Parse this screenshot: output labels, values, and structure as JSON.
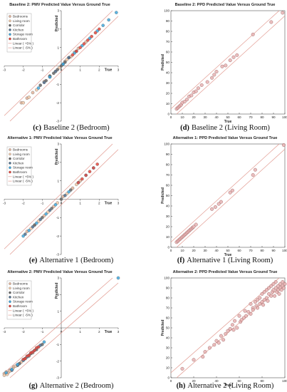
{
  "chart_data": [
    {
      "id": "a",
      "type": "scatter",
      "title": "Baseline 2: PMV Predicted Value Versus Ground True",
      "caption_label": "(c)",
      "caption_text": "Baseline 2 (Bedroom)",
      "xlabel": "True",
      "ylabel": "Predicted",
      "xlim": [
        -3,
        3
      ],
      "ylim": [
        -3,
        3
      ],
      "xticks": [
        "-3",
        "-2",
        "-1",
        "0",
        "1",
        "2",
        "3"
      ],
      "yticks": [
        "-3",
        "-2",
        "-1",
        "1",
        "2",
        "3"
      ],
      "axes_style": "centered",
      "legend": {
        "position": "top-left",
        "entries": [
          {
            "label": "Bedrooms",
            "kind": "marker",
            "color": "#e4b49a"
          },
          {
            "label": "Living room",
            "kind": "marker",
            "color": "#f2c9a8"
          },
          {
            "label": "Corridor",
            "kind": "marker",
            "color": "#666666"
          },
          {
            "label": "Kitchen",
            "kind": "marker",
            "color": "#4f6f8f"
          },
          {
            "label": "Storage room",
            "kind": "marker",
            "color": "#3fa8de"
          },
          {
            "label": "Bathroom",
            "kind": "marker",
            "color": "#e8443a"
          },
          {
            "label": "Linear ( +5% )",
            "kind": "line",
            "color": "#e29a90"
          },
          {
            "label": "Linear ( -5% )",
            "kind": "line",
            "color": "#e29a90"
          }
        ]
      },
      "series": [
        {
          "name": "Bedrooms",
          "color": "#e4b49a",
          "x": [
            -2.1,
            -1.8,
            -1.5,
            -0.9,
            -0.3,
            0.2,
            0.5,
            0.9,
            1.3
          ],
          "y": [
            -2.0,
            -1.75,
            -1.45,
            -0.85,
            -0.3,
            0.25,
            0.5,
            0.95,
            1.3
          ]
        },
        {
          "name": "Living room",
          "color": "#f2c9a8",
          "x": [
            -2.0,
            -1.7,
            -1.3,
            -0.6,
            -0.1,
            0.3,
            0.7
          ],
          "y": [
            -2.0,
            -1.7,
            -1.3,
            -0.55,
            -0.1,
            0.35,
            0.75
          ]
        },
        {
          "name": "Corridor",
          "color": "#666666",
          "x": [
            -1.1,
            -0.8,
            -0.6,
            -0.4,
            -0.2,
            0.0,
            0.2,
            0.4
          ],
          "y": [
            -1.05,
            -0.8,
            -0.55,
            -0.4,
            -0.2,
            0.0,
            0.2,
            0.45
          ]
        },
        {
          "name": "Kitchen",
          "color": "#4f6f8f",
          "x": [
            -0.9,
            -0.6,
            -0.3,
            0.1,
            0.4,
            0.8
          ],
          "y": [
            -0.9,
            -0.6,
            -0.3,
            0.1,
            0.45,
            0.8
          ]
        },
        {
          "name": "Storage room",
          "color": "#3fa8de",
          "x": [
            -1.2,
            -0.6,
            0.1,
            0.7,
            1.1,
            1.5,
            1.9,
            2.2,
            2.5,
            2.9
          ],
          "y": [
            -1.2,
            -0.6,
            0.1,
            0.7,
            1.1,
            1.5,
            1.9,
            2.2,
            2.5,
            2.9
          ]
        },
        {
          "name": "Bathroom",
          "color": "#e8443a",
          "x": [
            0.6,
            0.8,
            1.0,
            1.2,
            1.4,
            1.6,
            1.8,
            2.0
          ],
          "y": [
            0.6,
            0.8,
            1.0,
            1.2,
            1.4,
            1.6,
            1.8,
            2.0
          ]
        }
      ]
    },
    {
      "id": "b",
      "type": "scatter",
      "title": "Baseline 2: PPD Predicted Value Versus Ground True",
      "caption_label": "(d)",
      "caption_text": "Baseline 2 (Living Room)",
      "xlabel": "True",
      "ylabel": "Predicted",
      "xlim": [
        0,
        100
      ],
      "ylim": [
        0,
        100
      ],
      "xticks": [
        "0",
        "10",
        "20",
        "30",
        "40",
        "50",
        "60",
        "70",
        "80",
        "90",
        "100"
      ],
      "yticks": [
        "0",
        "10",
        "20",
        "30",
        "40",
        "50",
        "60",
        "70",
        "80",
        "90",
        "100"
      ],
      "axes_style": "box",
      "series": [
        {
          "name": "",
          "color": "#e6b3b3",
          "x": [
            5,
            6,
            7,
            8,
            9,
            10,
            12,
            14,
            16,
            18,
            20,
            22,
            24,
            27,
            32,
            36,
            38,
            40,
            45,
            48,
            52,
            55,
            58,
            72,
            88,
            98
          ],
          "y": [
            5,
            6,
            7,
            8,
            9,
            11,
            12,
            14,
            17,
            18,
            21,
            22,
            25,
            28,
            31,
            35,
            38,
            41,
            46,
            47,
            52,
            55,
            57,
            77,
            89,
            98
          ]
        }
      ]
    },
    {
      "id": "c",
      "type": "scatter",
      "title": "Alternative 1: PMV Predicted Value Versus Ground True",
      "caption_label": "(e)",
      "caption_text": "Alternative 1 (Bedroom)",
      "xlabel": "True",
      "ylabel": "Predicted",
      "xlim": [
        -3,
        3
      ],
      "ylim": [
        -3,
        3
      ],
      "xticks": [
        "-3",
        "-2",
        "-1",
        "0",
        "1",
        "2",
        "3"
      ],
      "yticks": [
        "-3",
        "-2",
        "-1",
        "1",
        "2",
        "3"
      ],
      "axes_style": "centered",
      "legend": {
        "position": "top-left",
        "entries": [
          {
            "label": "Bedrooms",
            "kind": "marker",
            "color": "#e4b49a"
          },
          {
            "label": "Living room",
            "kind": "marker",
            "color": "#f2c9a8"
          },
          {
            "label": "Corridor",
            "kind": "marker",
            "color": "#666666"
          },
          {
            "label": "Kitchen",
            "kind": "marker",
            "color": "#4f6f8f"
          },
          {
            "label": "Storage room",
            "kind": "marker",
            "color": "#3fa8de"
          },
          {
            "label": "Bathroom",
            "kind": "marker",
            "color": "#e8443a"
          },
          {
            "label": "Linear ( +5% )",
            "kind": "line",
            "color": "#e29a90"
          },
          {
            "label": "Linear ( -5% )",
            "kind": "line",
            "color": "#e29a90"
          }
        ]
      },
      "series": [
        {
          "name": "Bedrooms",
          "color": "#e4b49a",
          "x": [
            -1.8,
            -1.4,
            -0.9,
            -0.4,
            0.1,
            0.6,
            1.0
          ],
          "y": [
            -1.75,
            -1.4,
            -0.9,
            -0.4,
            0.15,
            0.6,
            1.0
          ]
        },
        {
          "name": "Living room",
          "color": "#f2c9a8",
          "x": [
            -1.6,
            -1.2,
            -0.7,
            -0.2,
            0.3,
            0.8
          ],
          "y": [
            -1.6,
            -1.2,
            -0.7,
            -0.2,
            0.3,
            0.8
          ]
        },
        {
          "name": "Corridor",
          "color": "#666666",
          "x": [
            -1.4,
            -1.0,
            -0.5,
            0.0,
            0.5
          ],
          "y": [
            -1.4,
            -1.0,
            -0.5,
            0.0,
            0.5
          ]
        },
        {
          "name": "Kitchen",
          "color": "#4f6f8f",
          "x": [
            -1.9,
            -1.5,
            -1.1,
            -0.6,
            0.2
          ],
          "y": [
            -1.9,
            -1.5,
            -1.1,
            -0.6,
            0.2
          ]
        },
        {
          "name": "Storage room",
          "color": "#3fa8de",
          "x": [
            -2.0,
            -1.7,
            -1.3,
            -0.8,
            -0.3,
            0.4,
            0.9,
            1.3,
            1.7
          ],
          "y": [
            -2.0,
            -1.7,
            -1.3,
            -0.8,
            -0.3,
            0.4,
            0.9,
            1.3,
            1.7
          ]
        },
        {
          "name": "Bathroom",
          "color": "#e8443a",
          "x": [
            0.9,
            1.1,
            1.3,
            1.5,
            1.7,
            1.9
          ],
          "y": [
            0.9,
            1.1,
            1.3,
            1.5,
            1.7,
            1.9
          ]
        }
      ]
    },
    {
      "id": "d",
      "type": "scatter",
      "title": "Alternative 1: PPD Predicted Value Versus Ground True",
      "caption_label": "(f)",
      "caption_text": "Alternative 1 (Living Room)",
      "xlabel": "True",
      "ylabel": "Predicted",
      "xlim": [
        0,
        100
      ],
      "ylim": [
        0,
        100
      ],
      "xticks": [
        "0",
        "10",
        "20",
        "30",
        "40",
        "50",
        "60",
        "70",
        "80",
        "90",
        "100"
      ],
      "yticks": [
        "0",
        "10",
        "20",
        "30",
        "40",
        "50",
        "60",
        "70",
        "80",
        "90",
        "100"
      ],
      "axes_style": "box",
      "series": [
        {
          "name": "",
          "color": "#e6b3b3",
          "x": [
            5,
            6,
            7,
            8,
            9,
            10,
            11,
            12,
            13,
            14,
            15,
            16,
            17,
            18,
            19,
            20,
            22,
            36,
            39,
            42,
            44,
            52,
            54,
            72,
            74,
            99
          ],
          "y": [
            5,
            6,
            7,
            8,
            9,
            10,
            11,
            12,
            13,
            14,
            15,
            16,
            17,
            18,
            19,
            20,
            22,
            37,
            39,
            42,
            44,
            53,
            55,
            70,
            75,
            99
          ]
        }
      ]
    },
    {
      "id": "e",
      "type": "scatter",
      "title": "Alternative 2: PMV Predicted Value Versus Ground True",
      "caption_label": "(g)",
      "caption_text": "Alternative 2 (Bedroom)",
      "xlabel": "True",
      "ylabel": "Predicted",
      "xlim": [
        -3,
        3
      ],
      "ylim": [
        -3,
        3
      ],
      "xticks": [
        "-3",
        "-2",
        "-1",
        "0",
        "1",
        "2",
        "3"
      ],
      "yticks": [
        "-3",
        "-2",
        "-1",
        "1",
        "2",
        "3"
      ],
      "axes_style": "centered",
      "legend": {
        "position": "top-left",
        "entries": [
          {
            "label": "Bedrooms",
            "kind": "marker",
            "color": "#e4b49a"
          },
          {
            "label": "Living room",
            "kind": "marker",
            "color": "#f2c9a8"
          },
          {
            "label": "Corridor",
            "kind": "marker",
            "color": "#666666"
          },
          {
            "label": "Kitchen",
            "kind": "marker",
            "color": "#4f6f8f"
          },
          {
            "label": "Storage room",
            "kind": "marker",
            "color": "#3fa8de"
          },
          {
            "label": "Bathroom",
            "kind": "marker",
            "color": "#e8443a"
          },
          {
            "label": "Linear ( +5% )",
            "kind": "line",
            "color": "#e29a90"
          },
          {
            "label": "Linear ( -5% )",
            "kind": "line",
            "color": "#e29a90"
          }
        ]
      },
      "series": [
        {
          "name": "Bedrooms",
          "color": "#e4b49a",
          "x": [
            -3.0,
            -2.9,
            -2.8,
            -2.7,
            -2.6,
            -2.5,
            -2.3,
            -2.1,
            -1.9,
            -1.7,
            -1.5
          ],
          "y": [
            -2.75,
            -2.65,
            -2.7,
            -2.55,
            -2.5,
            -2.35,
            -2.25,
            -2.05,
            -1.85,
            -1.7,
            -1.5
          ]
        },
        {
          "name": "Living room",
          "color": "#f2c9a8",
          "x": [
            -3.0,
            -2.85,
            -2.7,
            -2.55,
            -2.4,
            -2.2,
            -2.0,
            -1.8
          ],
          "y": [
            -2.85,
            -2.8,
            -2.6,
            -2.45,
            -2.3,
            -2.15,
            -1.95,
            -1.75
          ]
        },
        {
          "name": "Corridor",
          "color": "#666666",
          "x": [
            -2.2,
            -1.9,
            -1.6,
            -1.3,
            -1.0
          ],
          "y": [
            -2.15,
            -1.85,
            -1.55,
            -1.3,
            -1.0
          ]
        },
        {
          "name": "Kitchen",
          "color": "#4f6f8f",
          "x": [
            -2.6,
            -2.3,
            -2.0,
            -1.7,
            -1.4,
            -1.1
          ],
          "y": [
            -2.55,
            -2.25,
            -1.95,
            -1.65,
            -1.35,
            -1.05
          ]
        },
        {
          "name": "Storage room",
          "color": "#3fa8de",
          "x": [
            -2.9,
            -2.6,
            -2.3,
            -2.0,
            -1.8,
            -1.5,
            -1.2,
            -0.9,
            3.0
          ],
          "y": [
            -2.7,
            -2.5,
            -2.2,
            -1.95,
            -1.75,
            -1.45,
            -1.15,
            -0.85,
            3.0
          ]
        },
        {
          "name": "Bathroom",
          "color": "#e8443a",
          "x": [
            -2.0,
            -1.9,
            -1.8,
            -1.7,
            -1.6,
            -1.5,
            -1.4,
            -1.3,
            -1.2
          ],
          "y": [
            -1.9,
            -1.85,
            -1.7,
            -1.65,
            -1.5,
            -1.45,
            -1.35,
            -1.2,
            -1.15
          ]
        }
      ]
    },
    {
      "id": "f",
      "type": "scatter",
      "title": "Alternative 2: PPD Predicted Value Versus Ground True",
      "caption_label": "(h)",
      "caption_text": "Alternative 2 (Living Room)",
      "xlabel": "True",
      "ylabel": "Predicted",
      "xlim": [
        0,
        100
      ],
      "ylim": [
        0,
        100
      ],
      "xticks": [
        "0",
        "20",
        "40",
        "60",
        "80",
        "100"
      ],
      "yticks": [
        "0",
        "10",
        "20",
        "30",
        "40",
        "50",
        "60",
        "70",
        "80",
        "90",
        "100"
      ],
      "axes_style": "box",
      "series": [
        {
          "name": "",
          "color": "#e6b3b3",
          "x": [
            10,
            20,
            28,
            30,
            34,
            38,
            40,
            42,
            44,
            46,
            48,
            50,
            52,
            54,
            55,
            56,
            58,
            60,
            61,
            62,
            64,
            65,
            66,
            68,
            70,
            70,
            72,
            72,
            74,
            75,
            76,
            76,
            78,
            78,
            80,
            80,
            81,
            82,
            82,
            84,
            84,
            85,
            86,
            86,
            88,
            88,
            89,
            90,
            90,
            91,
            92,
            92,
            93,
            94,
            94,
            95,
            96,
            96,
            97,
            98,
            98,
            99,
            100
          ],
          "y": [
            9,
            18,
            21,
            26,
            30,
            33,
            37,
            35,
            42,
            38,
            44,
            47,
            49,
            53,
            48,
            57,
            50,
            62,
            56,
            58,
            60,
            67,
            62,
            66,
            64,
            74,
            70,
            68,
            76,
            72,
            78,
            70,
            74,
            80,
            76,
            84,
            73,
            78,
            86,
            80,
            88,
            77,
            84,
            90,
            82,
            92,
            86,
            88,
            94,
            82,
            90,
            96,
            86,
            88,
            92,
            84,
            90,
            94,
            88,
            92,
            96,
            90,
            94
          ]
        }
      ]
    }
  ]
}
